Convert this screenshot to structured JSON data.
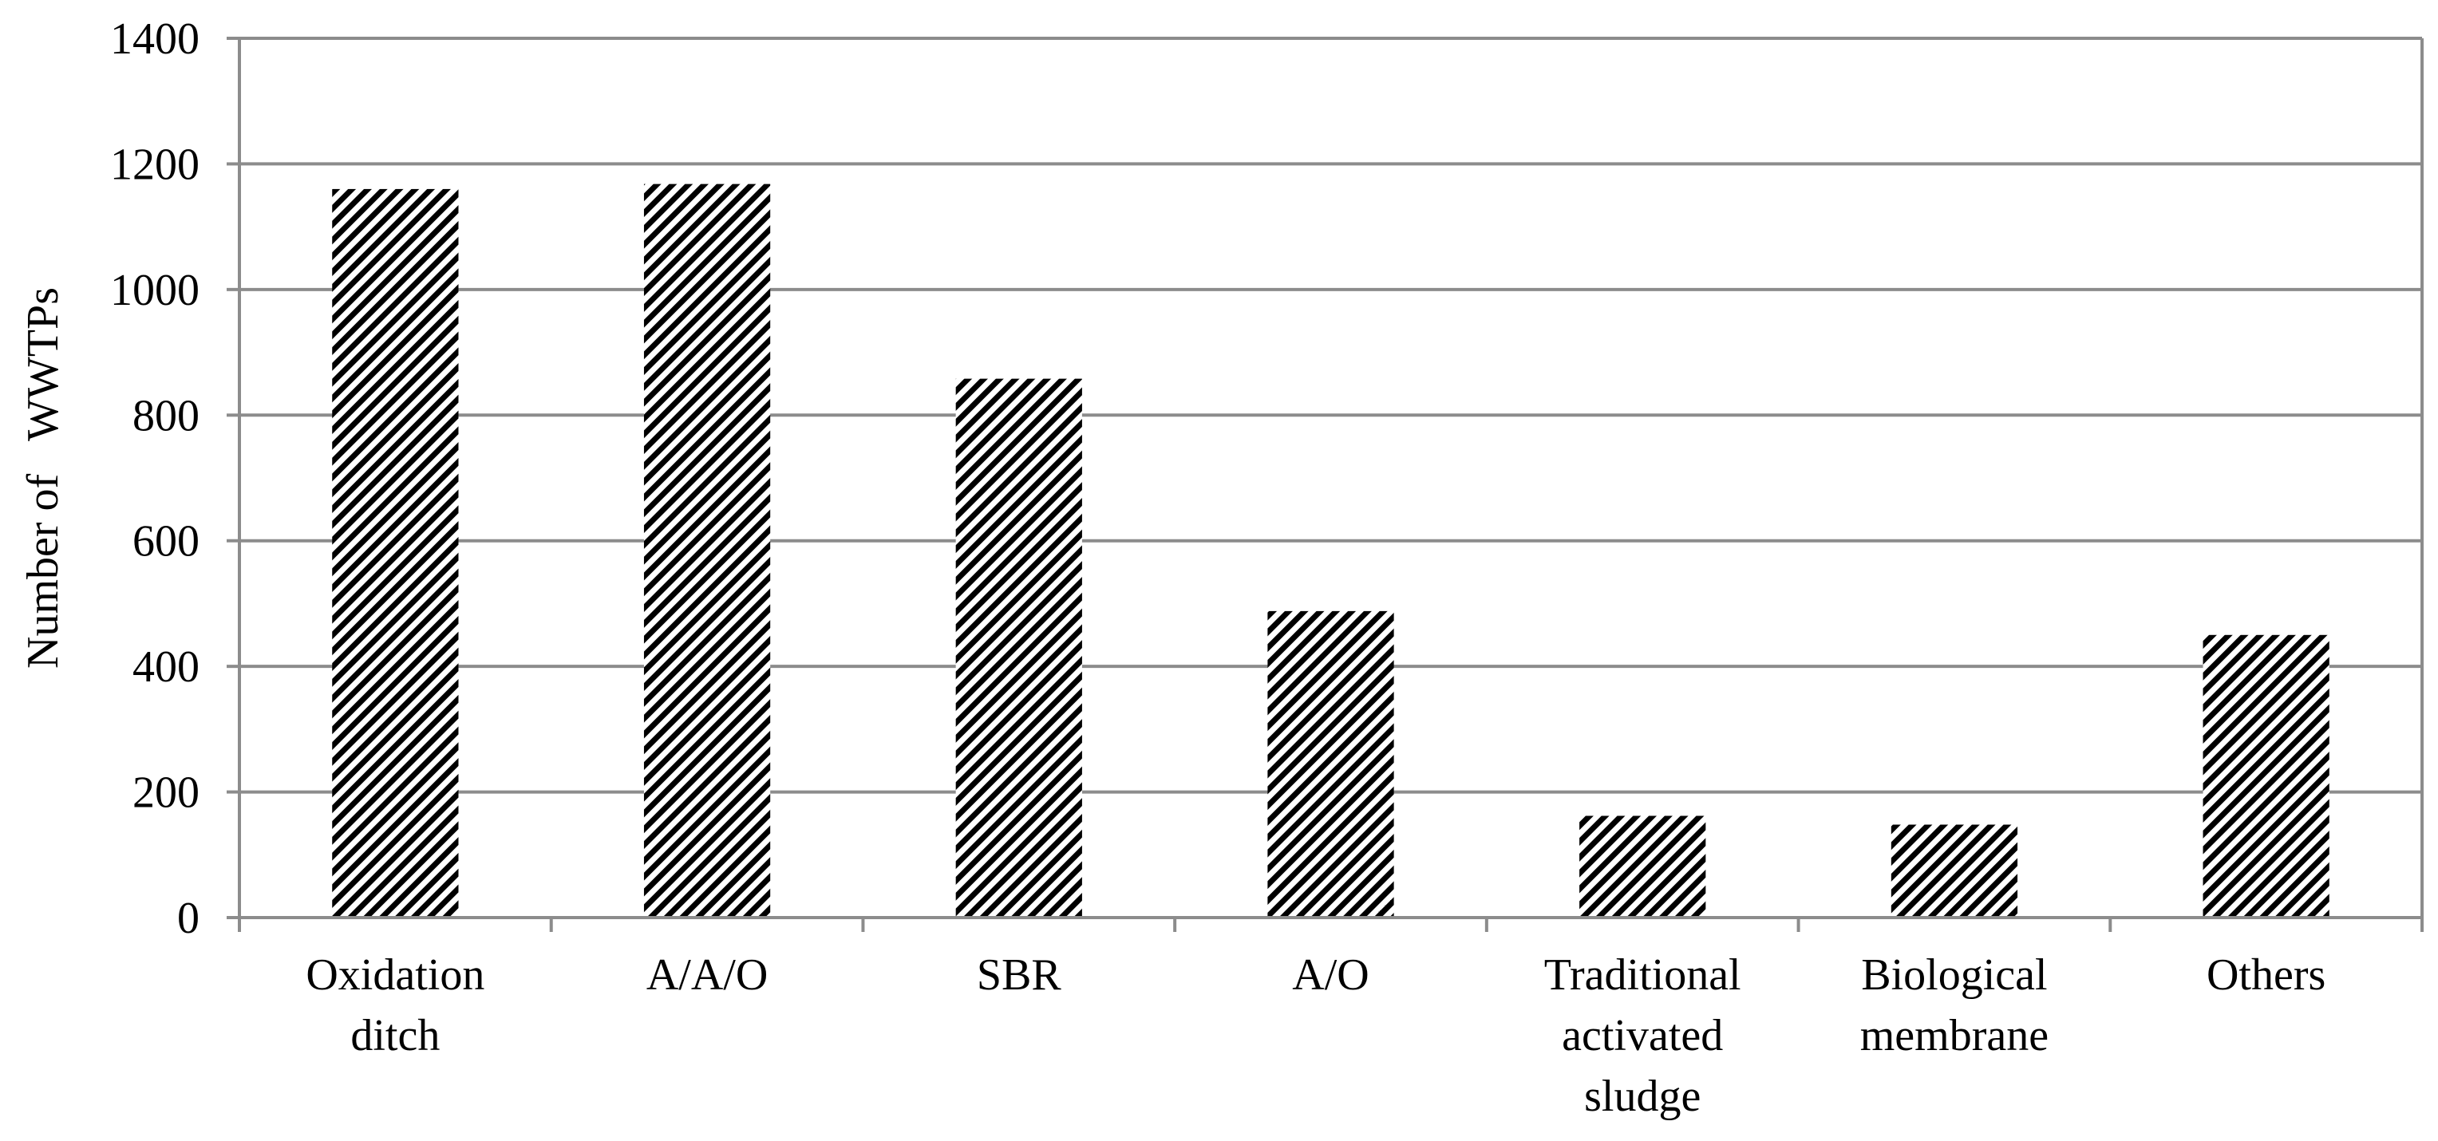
{
  "chart_data": {
    "type": "bar",
    "title": "",
    "xlabel": "",
    "ylabel": "Number of   WWTPs",
    "categories": [
      [
        "Oxidation",
        "ditch"
      ],
      [
        "A/A/O"
      ],
      [
        "SBR"
      ],
      [
        "A/O"
      ],
      [
        "Traditional",
        "activated",
        "sludge"
      ],
      [
        "Biological",
        "membrane"
      ],
      [
        "Others"
      ]
    ],
    "values": [
      1160,
      1168,
      858,
      488,
      162,
      148,
      450
    ],
    "ylim": [
      0,
      1400
    ],
    "yticks": [
      0,
      200,
      400,
      600,
      800,
      1000,
      1200,
      1400
    ],
    "grid": true,
    "legend": "none",
    "colors": {
      "bar_stripe": "#000000",
      "bar_background": "#ffffff",
      "grid": "#8c8c8c",
      "axis": "#8c8c8c",
      "frame": "#8c8c8c"
    }
  }
}
